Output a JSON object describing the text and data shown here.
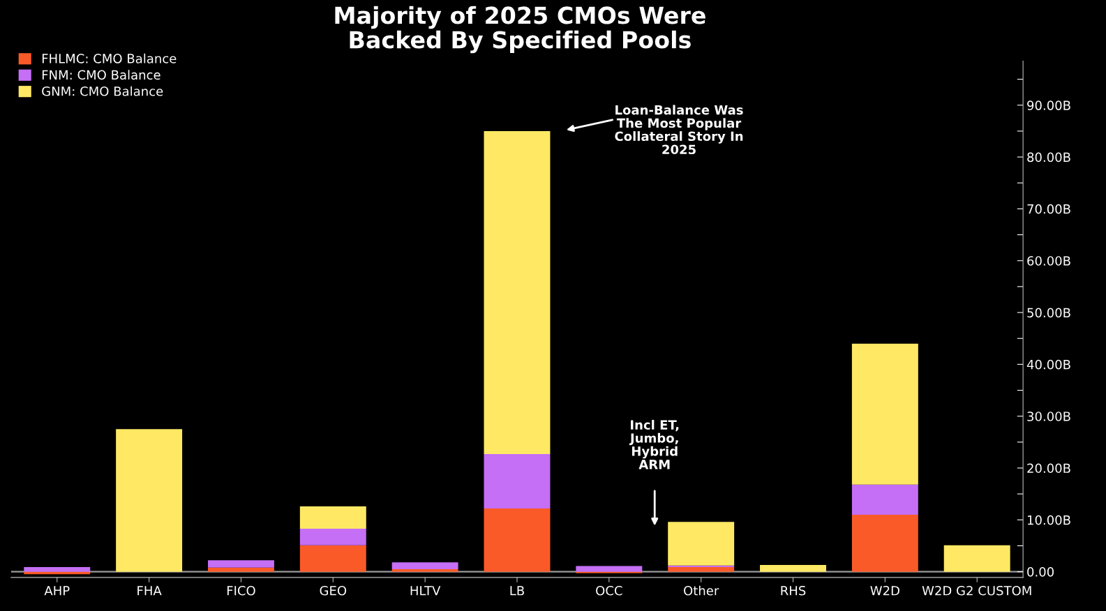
{
  "chart_data": {
    "type": "bar",
    "stacked": true,
    "title": "Majority of 2025 CMOs Were\nBacked By Specified Pools",
    "categories": [
      "AHP",
      "FHA",
      "FICO",
      "GEO",
      "HLTV",
      "LB",
      "OCC",
      "Other",
      "RHS",
      "W2D",
      "W2D G2 CUSTOM"
    ],
    "series": [
      {
        "name": "FHLMC: CMO Balance",
        "color": "#fa5a28",
        "values": [
          -0.5,
          0,
          0.8,
          5.1,
          0.5,
          12.2,
          -0.3,
          0.9,
          0,
          11.0,
          0
        ]
      },
      {
        "name": "FNM: CMO Balance",
        "color": "#c46ff5",
        "values": [
          0.9,
          0,
          1.4,
          3.2,
          1.3,
          10.5,
          1.1,
          0.3,
          0,
          5.8,
          0
        ]
      },
      {
        "name": "GNM: CMO Balance",
        "color": "#ffe964",
        "values": [
          0,
          27.5,
          0,
          4.3,
          0,
          62.3,
          0,
          8.4,
          1.3,
          27.2,
          5.1
        ]
      }
    ],
    "ylim": [
      -1.1,
      98.5
    ],
    "yticks": [
      {
        "value": 0,
        "label": "0.00"
      },
      {
        "value": 5,
        "label": null
      },
      {
        "value": 10,
        "label": "10.00B"
      },
      {
        "value": 15,
        "label": null
      },
      {
        "value": 20,
        "label": "20.00B"
      },
      {
        "value": 25,
        "label": null
      },
      {
        "value": 30,
        "label": "30.00B"
      },
      {
        "value": 35,
        "label": null
      },
      {
        "value": 40,
        "label": "40.00B"
      },
      {
        "value": 45,
        "label": null
      },
      {
        "value": 50,
        "label": "50.00B"
      },
      {
        "value": 55,
        "label": null
      },
      {
        "value": 60,
        "label": "60.00B"
      },
      {
        "value": 65,
        "label": null
      },
      {
        "value": 70,
        "label": "70.00B"
      },
      {
        "value": 75,
        "label": null
      },
      {
        "value": 80,
        "label": "80.00B"
      },
      {
        "value": 85,
        "label": null
      },
      {
        "value": 90,
        "label": "90.00B"
      },
      {
        "value": 95,
        "label": null
      }
    ],
    "ref_lines": [
      {
        "axis": "y",
        "value": 0,
        "color": "#9a9a9a"
      }
    ],
    "annotations": [
      "Loan-Balance Was\nThe Most Popular\nCollateral Story In\n2025",
      "Incl ET,\nJumbo,\nHybrid\nARM"
    ],
    "legend": "top left",
    "grid": false
  }
}
